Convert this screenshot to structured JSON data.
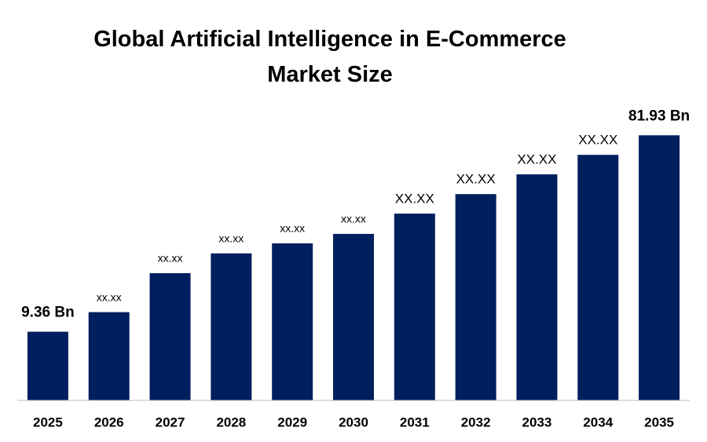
{
  "chart_data": {
    "type": "bar",
    "title": "Global Artificial Intelligence in E-Commerce Market Size",
    "categories": [
      "2025",
      "2026",
      "2027",
      "2028",
      "2029",
      "2030",
      "2031",
      "2032",
      "2033",
      "2034",
      "2035"
    ],
    "values": [
      9.36,
      16.6,
      31.0,
      38.3,
      42.0,
      45.5,
      53.0,
      60.2,
      67.5,
      74.7,
      81.93
    ],
    "value_labels": [
      "9.36 Bn",
      "xx.xx",
      "xx.xx",
      "xx.xx",
      "xx.xx",
      "xx.xx",
      "XX.XX",
      "XX.XX",
      "XX.XX",
      "XX.XX",
      "81.93 Bn"
    ],
    "color": "#001f5f",
    "ylim": [
      -16,
      100
    ]
  }
}
